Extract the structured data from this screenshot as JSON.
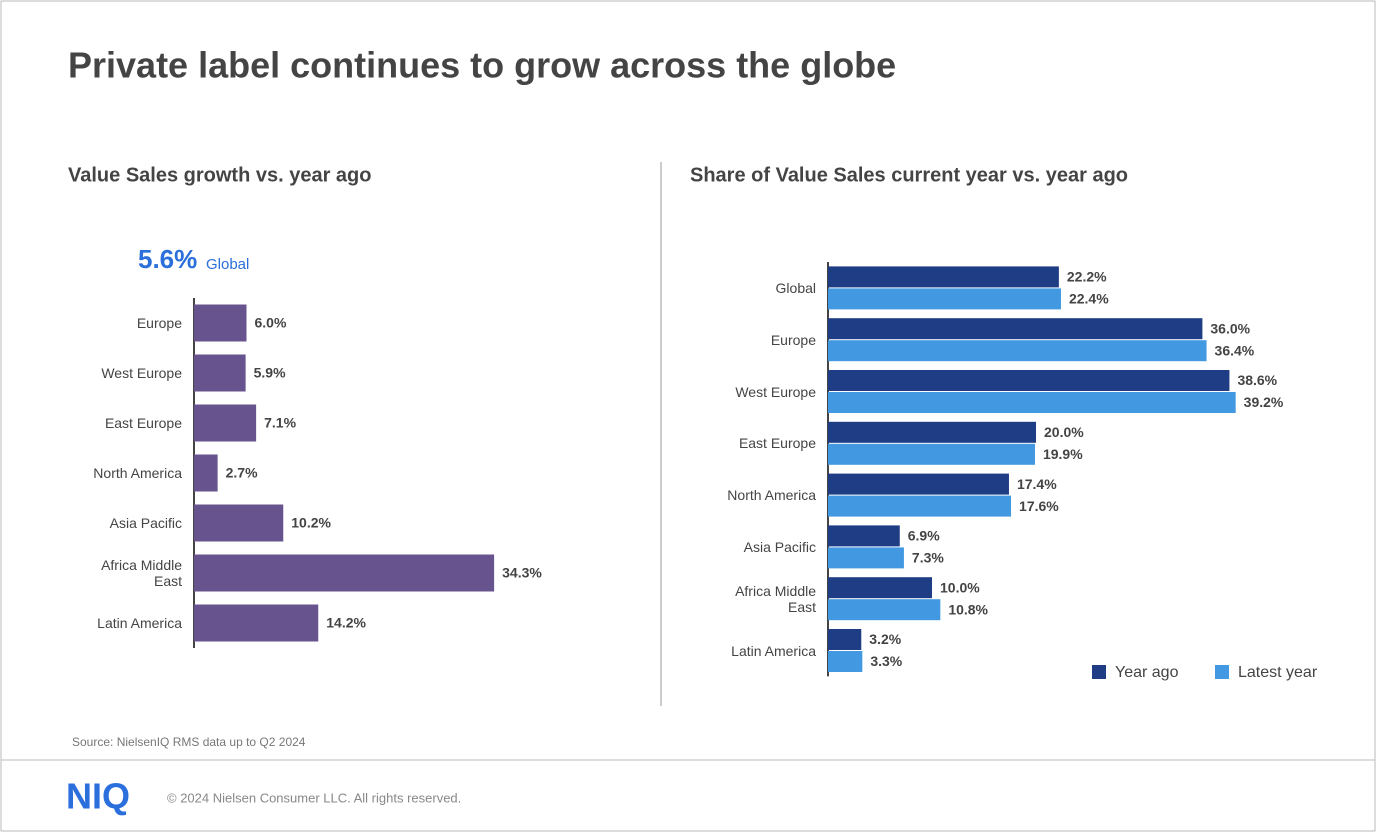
{
  "title": "Private label continues to grow across the globe",
  "chart_data": [
    {
      "type": "bar",
      "orientation": "horizontal",
      "title": "Value Sales growth vs. year ago",
      "headline": {
        "value": "5.6%",
        "label": "Global"
      },
      "categories": [
        "Europe",
        "West Europe",
        "East Europe",
        "North America",
        "Asia Pacific",
        "Africa Middle East",
        "Latin America"
      ],
      "values": [
        6.0,
        5.9,
        7.1,
        2.7,
        10.2,
        34.3,
        14.2
      ],
      "value_labels": [
        "6.0%",
        "5.9%",
        "7.1%",
        "2.7%",
        "10.2%",
        "34.3%",
        "14.2%"
      ],
      "color": "#67548f",
      "xlim": [
        0,
        40
      ]
    },
    {
      "type": "bar",
      "orientation": "horizontal",
      "title": "Share of Value Sales current year vs. year ago",
      "categories": [
        "Global",
        "Europe",
        "West Europe",
        "East Europe",
        "North America",
        "Asia Pacific",
        "Africa Middle East",
        "Latin America"
      ],
      "series": [
        {
          "name": "Year ago",
          "color": "#1f3d85",
          "values": [
            22.2,
            36.0,
            38.6,
            20.0,
            17.4,
            6.9,
            10.0,
            3.2
          ],
          "value_labels": [
            "22.2%",
            "36.0%",
            "38.6%",
            "20.0%",
            "17.4%",
            "6.9%",
            "10.0%",
            "3.2%"
          ]
        },
        {
          "name": "Latest year",
          "color": "#4299e1",
          "values": [
            22.4,
            36.4,
            39.2,
            19.9,
            17.6,
            7.3,
            10.8,
            3.3
          ],
          "value_labels": [
            "22.4%",
            "36.4%",
            "39.2%",
            "19.9%",
            "17.6%",
            "7.3%",
            "10.8%",
            "3.3%"
          ]
        }
      ],
      "xlim": [
        0,
        45
      ],
      "legend": "bottom-right"
    }
  ],
  "source": "Source: NielsenIQ RMS data up to Q2 2024",
  "footer": {
    "logo": "NIQ",
    "copyright": "© 2024 Nielsen Consumer LLC. All rights reserved."
  }
}
